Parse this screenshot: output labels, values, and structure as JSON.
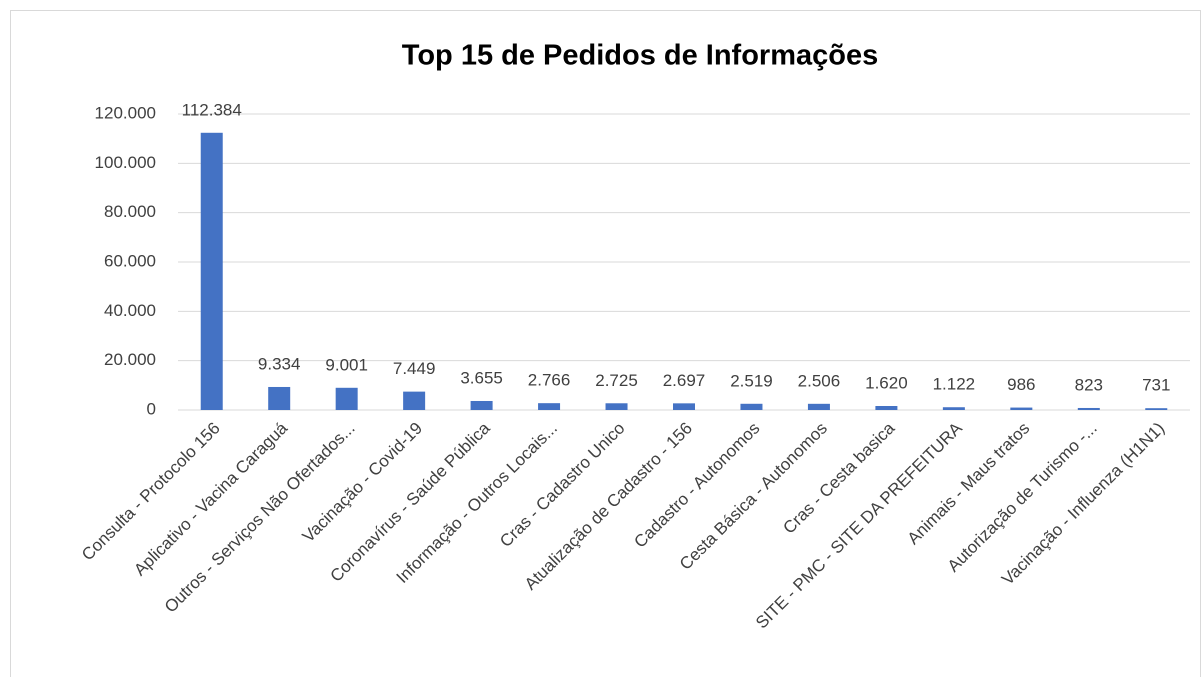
{
  "chart_data": {
    "type": "bar",
    "title": "Top 15 de Pedidos de Informações",
    "categories": [
      "Consulta - Protocolo 156",
      "Aplicativo - Vacina Caraguá",
      "Outros - Serviços Não Ofertados...",
      "Vacinação - Covid-19",
      "Coronavírus - Saúde Pública",
      "Informação - Outros Locais...",
      "Cras - Cadastro Unico",
      "Atualização de Cadastro - 156",
      "Cadastro - Autonomos",
      "Cesta Básica - Autonomos",
      "Cras - Cesta basica",
      "SITE - PMC - SITE DA PREFEITURA",
      "Animais - Maus tratos",
      "Autorização de Turismo -...",
      "Vacinação - Influenza (H1N1)"
    ],
    "values": [
      112384,
      9334,
      9001,
      7449,
      3655,
      2766,
      2725,
      2697,
      2519,
      2506,
      1620,
      1122,
      986,
      823,
      731
    ],
    "value_labels": [
      "112.384",
      "9.334",
      "9.001",
      "7.449",
      "3.655",
      "2.766",
      "2.725",
      "2.697",
      "2.519",
      "2.506",
      "1.620",
      "1.122",
      "986",
      "823",
      "731"
    ],
    "color": "#4472c4",
    "ylim": [
      0,
      120000
    ],
    "yticks": [
      0,
      {
        "value": 20000,
        "label": "20.000"
      },
      {
        "value": 40000,
        "label": "40.000"
      },
      {
        "value": 60000,
        "label": "60.000"
      },
      {
        "value": 80000,
        "label": "80.000"
      },
      {
        "value": 100000,
        "label": "100.000"
      },
      {
        "value": 120000,
        "label": "120.000"
      }
    ],
    "grid": true
  }
}
